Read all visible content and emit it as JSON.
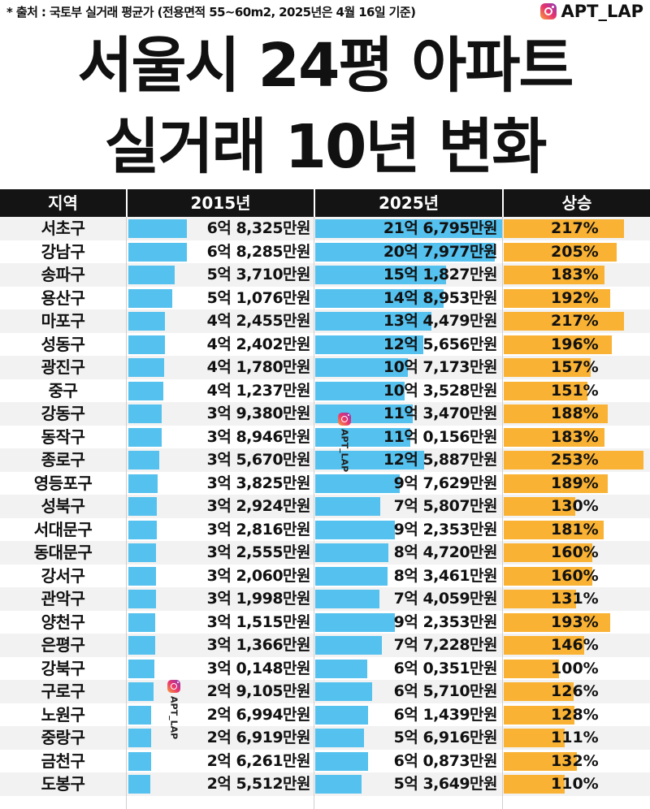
{
  "header": {
    "source_note": "* 출처 : 국토부 실거래 평균가 (전용면적 55~60m2, 2025년은 4월 16일 기준)",
    "brand": "APT_LAP",
    "title_line1": "서울시 24평 아파트",
    "title_line2": "실거래 10년 변화",
    "watermark": "APT_LAP"
  },
  "colors": {
    "bar_2015": "#55c1ee",
    "bar_2025": "#55c1ee",
    "bar_rise": "#f9b233",
    "header_bg": "#141414"
  },
  "chart_data": {
    "type": "table",
    "columns": [
      "지역",
      "2015년",
      "2025년",
      "상승"
    ],
    "units": "만원",
    "rows": [
      {
        "region": "서초구",
        "v2015": 68325,
        "l2015": "6억 8,325만원",
        "v2025": 216795,
        "l2025": "21억 6,795만원",
        "rise": 217,
        "lrise": "217%"
      },
      {
        "region": "강남구",
        "v2015": 68285,
        "l2015": "6억 8,285만원",
        "v2025": 207977,
        "l2025": "20억 7,977만원",
        "rise": 205,
        "lrise": "205%"
      },
      {
        "region": "송파구",
        "v2015": 53710,
        "l2015": "5억 3,710만원",
        "v2025": 151827,
        "l2025": "15억 1,827만원",
        "rise": 183,
        "lrise": "183%"
      },
      {
        "region": "용산구",
        "v2015": 51076,
        "l2015": "5억 1,076만원",
        "v2025": 148953,
        "l2025": "14억 8,953만원",
        "rise": 192,
        "lrise": "192%"
      },
      {
        "region": "마포구",
        "v2015": 42455,
        "l2015": "4억 2,455만원",
        "v2025": 134479,
        "l2025": "13억 4,479만원",
        "rise": 217,
        "lrise": "217%"
      },
      {
        "region": "성동구",
        "v2015": 42402,
        "l2015": "4억 2,402만원",
        "v2025": 125656,
        "l2025": "12억 5,656만원",
        "rise": 196,
        "lrise": "196%"
      },
      {
        "region": "광진구",
        "v2015": 41780,
        "l2015": "4억 1,780만원",
        "v2025": 107173,
        "l2025": "10억 7,173만원",
        "rise": 157,
        "lrise": "157%"
      },
      {
        "region": "중구",
        "v2015": 41237,
        "l2015": "4억 1,237만원",
        "v2025": 103528,
        "l2025": "10억 3,528만원",
        "rise": 151,
        "lrise": "151%"
      },
      {
        "region": "강동구",
        "v2015": 39380,
        "l2015": "3억 9,380만원",
        "v2025": 113470,
        "l2025": "11억 3,470만원",
        "rise": 188,
        "lrise": "188%"
      },
      {
        "region": "동작구",
        "v2015": 38946,
        "l2015": "3억 8,946만원",
        "v2025": 110156,
        "l2025": "11억 0,156만원",
        "rise": 183,
        "lrise": "183%"
      },
      {
        "region": "종로구",
        "v2015": 35670,
        "l2015": "3억 5,670만원",
        "v2025": 125887,
        "l2025": "12억 5,887만원",
        "rise": 253,
        "lrise": "253%"
      },
      {
        "region": "영등포구",
        "v2015": 33825,
        "l2015": "3억 3,825만원",
        "v2025": 97629,
        "l2025": "9억 7,629만원",
        "rise": 189,
        "lrise": "189%"
      },
      {
        "region": "성북구",
        "v2015": 32924,
        "l2015": "3억 2,924만원",
        "v2025": 75807,
        "l2025": "7억 5,807만원",
        "rise": 130,
        "lrise": "130%"
      },
      {
        "region": "서대문구",
        "v2015": 32816,
        "l2015": "3억 2,816만원",
        "v2025": 92353,
        "l2025": "9억 2,353만원",
        "rise": 181,
        "lrise": "181%"
      },
      {
        "region": "동대문구",
        "v2015": 32555,
        "l2015": "3억 2,555만원",
        "v2025": 84720,
        "l2025": "8억 4,720만원",
        "rise": 160,
        "lrise": "160%"
      },
      {
        "region": "강서구",
        "v2015": 32060,
        "l2015": "3억 2,060만원",
        "v2025": 83461,
        "l2025": "8억 3,461만원",
        "rise": 160,
        "lrise": "160%"
      },
      {
        "region": "관악구",
        "v2015": 31998,
        "l2015": "3억 1,998만원",
        "v2025": 74059,
        "l2025": "7억 4,059만원",
        "rise": 131,
        "lrise": "131%"
      },
      {
        "region": "양천구",
        "v2015": 31515,
        "l2015": "3억 1,515만원",
        "v2025": 92353,
        "l2025": "9억 2,353만원",
        "rise": 193,
        "lrise": "193%"
      },
      {
        "region": "은평구",
        "v2015": 31366,
        "l2015": "3억 1,366만원",
        "v2025": 77228,
        "l2025": "7억 7,228만원",
        "rise": 146,
        "lrise": "146%"
      },
      {
        "region": "강북구",
        "v2015": 30148,
        "l2015": "3억 0,148만원",
        "v2025": 60351,
        "l2025": "6억 0,351만원",
        "rise": 100,
        "lrise": "100%"
      },
      {
        "region": "구로구",
        "v2015": 29105,
        "l2015": "2억 9,105만원",
        "v2025": 65710,
        "l2025": "6억 5,710만원",
        "rise": 126,
        "lrise": "126%"
      },
      {
        "region": "노원구",
        "v2015": 26994,
        "l2015": "2억 6,994만원",
        "v2025": 61439,
        "l2025": "6억 1,439만원",
        "rise": 128,
        "lrise": "128%"
      },
      {
        "region": "중랑구",
        "v2015": 26919,
        "l2015": "2억 6,919만원",
        "v2025": 56916,
        "l2025": "5억 6,916만원",
        "rise": 111,
        "lrise": "111%"
      },
      {
        "region": "금천구",
        "v2015": 26261,
        "l2015": "2억 6,261만원",
        "v2025": 60873,
        "l2025": "6억 0,873만원",
        "rise": 132,
        "lrise": "132%"
      },
      {
        "region": "도봉구",
        "v2015": 25512,
        "l2015": "2억 5,512만원",
        "v2025": 53649,
        "l2025": "5억 3,649만원",
        "rise": 110,
        "lrise": "110%"
      }
    ]
  }
}
